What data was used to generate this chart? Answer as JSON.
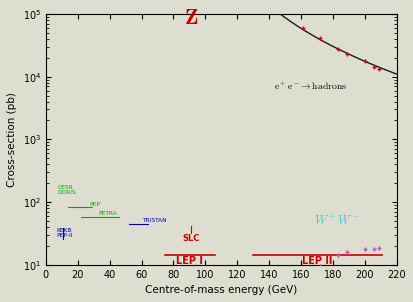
{
  "xlabel": "Centre-of-mass energy (GeV)",
  "ylabel": "Cross-section (pb)",
  "xlim": [
    0,
    220
  ],
  "ylim_log": [
    10,
    100000
  ],
  "bg_color": "#deded0",
  "curve_color": "#1a1a1a",
  "Z_label_color": "#cc0000",
  "W_label_color": "#44cccc",
  "green": "#00aa00",
  "blue_exp": "#0000bb",
  "red_exp": "#cc0000",
  "magenta": "#cc44cc"
}
